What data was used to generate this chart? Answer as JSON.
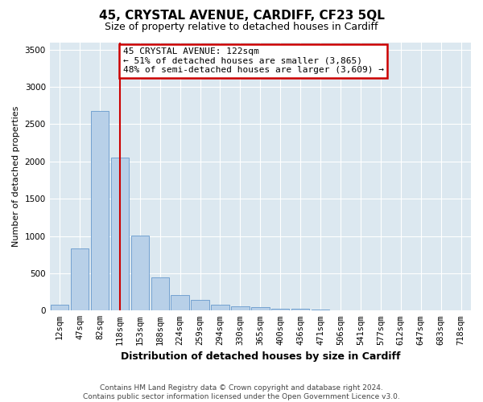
{
  "title": "45, CRYSTAL AVENUE, CARDIFF, CF23 5QL",
  "subtitle": "Size of property relative to detached houses in Cardiff",
  "xlabel": "Distribution of detached houses by size in Cardiff",
  "ylabel": "Number of detached properties",
  "categories": [
    "12sqm",
    "47sqm",
    "82sqm",
    "118sqm",
    "153sqm",
    "188sqm",
    "224sqm",
    "259sqm",
    "294sqm",
    "330sqm",
    "365sqm",
    "400sqm",
    "436sqm",
    "471sqm",
    "506sqm",
    "541sqm",
    "577sqm",
    "612sqm",
    "647sqm",
    "683sqm",
    "718sqm"
  ],
  "values": [
    80,
    830,
    2680,
    2050,
    1010,
    450,
    210,
    140,
    75,
    55,
    50,
    30,
    20,
    15,
    5,
    3,
    2,
    2,
    1,
    1,
    1
  ],
  "bar_color": "#b8d0e8",
  "bar_edge_color": "#6699cc",
  "property_size_index": 3,
  "property_line_color": "#cc0000",
  "annotation_text": "45 CRYSTAL AVENUE: 122sqm\n← 51% of detached houses are smaller (3,865)\n48% of semi-detached houses are larger (3,609) →",
  "annotation_box_color": "#ffffff",
  "annotation_box_edge_color": "#cc0000",
  "ylim": [
    0,
    3600
  ],
  "yticks": [
    0,
    500,
    1000,
    1500,
    2000,
    2500,
    3000,
    3500
  ],
  "bg_color": "#dce8f0",
  "grid_color": "#ffffff",
  "fig_bg_color": "#ffffff",
  "footer_line1": "Contains HM Land Registry data © Crown copyright and database right 2024.",
  "footer_line2": "Contains public sector information licensed under the Open Government Licence v3.0.",
  "title_fontsize": 11,
  "subtitle_fontsize": 9,
  "xlabel_fontsize": 9,
  "ylabel_fontsize": 8,
  "tick_fontsize": 7.5,
  "footer_fontsize": 6.5,
  "ann_fontsize": 8
}
